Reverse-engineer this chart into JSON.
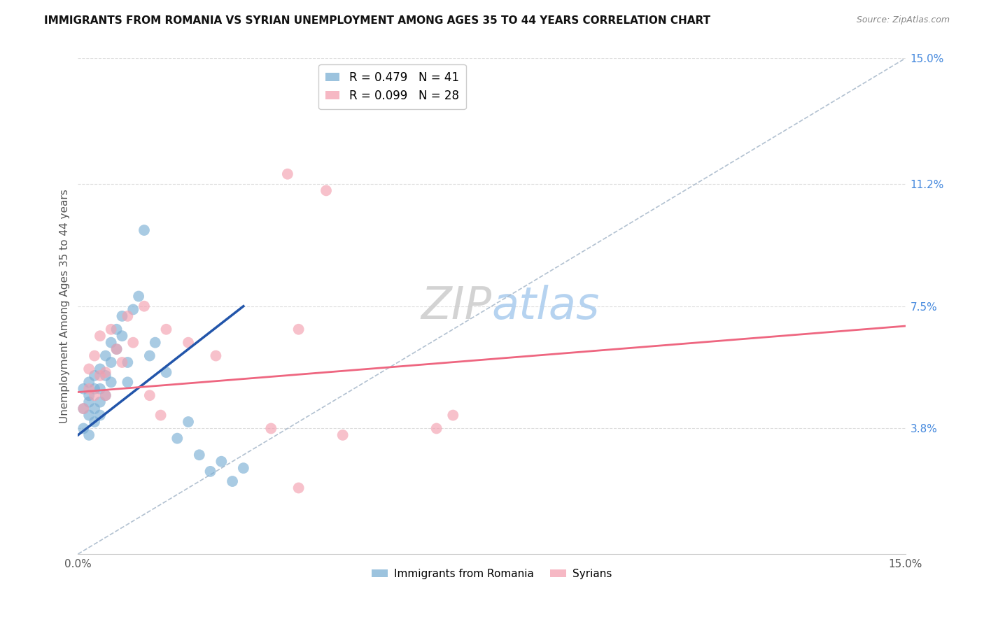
{
  "title": "IMMIGRANTS FROM ROMANIA VS SYRIAN UNEMPLOYMENT AMONG AGES 35 TO 44 YEARS CORRELATION CHART",
  "source": "Source: ZipAtlas.com",
  "ylabel": "Unemployment Among Ages 35 to 44 years",
  "xmin": 0.0,
  "xmax": 0.15,
  "ymin": 0.0,
  "ymax": 0.15,
  "y_tick_values_right": [
    0.038,
    0.075,
    0.112,
    0.15
  ],
  "y_tick_labels_right": [
    "3.8%",
    "7.5%",
    "11.2%",
    "15.0%"
  ],
  "legend_entry1": "R = 0.479   N = 41",
  "legend_entry2": "R = 0.099   N = 28",
  "legend_label1": "Immigrants from Romania",
  "legend_label2": "Syrians",
  "blue_color": "#7BAFD4",
  "pink_color": "#F4A0B0",
  "blue_line_color": "#2255AA",
  "pink_line_color": "#EE6680",
  "romania_x": [
    0.001,
    0.001,
    0.001,
    0.002,
    0.002,
    0.002,
    0.002,
    0.002,
    0.003,
    0.003,
    0.003,
    0.003,
    0.004,
    0.004,
    0.004,
    0.004,
    0.005,
    0.005,
    0.005,
    0.006,
    0.006,
    0.006,
    0.007,
    0.007,
    0.008,
    0.008,
    0.009,
    0.009,
    0.01,
    0.011,
    0.012,
    0.013,
    0.014,
    0.016,
    0.018,
    0.02,
    0.022,
    0.024,
    0.026,
    0.028,
    0.03
  ],
  "romania_y": [
    0.044,
    0.05,
    0.038,
    0.048,
    0.042,
    0.052,
    0.046,
    0.036,
    0.05,
    0.044,
    0.054,
    0.04,
    0.056,
    0.05,
    0.046,
    0.042,
    0.06,
    0.054,
    0.048,
    0.064,
    0.058,
    0.052,
    0.068,
    0.062,
    0.072,
    0.066,
    0.058,
    0.052,
    0.074,
    0.078,
    0.098,
    0.06,
    0.064,
    0.055,
    0.035,
    0.04,
    0.03,
    0.025,
    0.028,
    0.022,
    0.026
  ],
  "syrian_x": [
    0.001,
    0.002,
    0.002,
    0.003,
    0.003,
    0.004,
    0.004,
    0.005,
    0.005,
    0.006,
    0.007,
    0.008,
    0.009,
    0.01,
    0.012,
    0.013,
    0.015,
    0.016,
    0.02,
    0.025,
    0.038,
    0.045,
    0.065,
    0.068,
    0.04,
    0.035,
    0.048,
    0.04
  ],
  "syrian_y": [
    0.044,
    0.05,
    0.056,
    0.048,
    0.06,
    0.054,
    0.066,
    0.055,
    0.048,
    0.068,
    0.062,
    0.058,
    0.072,
    0.064,
    0.075,
    0.048,
    0.042,
    0.068,
    0.064,
    0.06,
    0.115,
    0.11,
    0.038,
    0.042,
    0.068,
    0.038,
    0.036,
    0.02
  ],
  "blue_line_x0": 0.0,
  "blue_line_y0": 0.036,
  "blue_line_x1": 0.03,
  "blue_line_y1": 0.075,
  "pink_line_x0": 0.0,
  "pink_line_y0": 0.049,
  "pink_line_x1": 0.15,
  "pink_line_y1": 0.069
}
